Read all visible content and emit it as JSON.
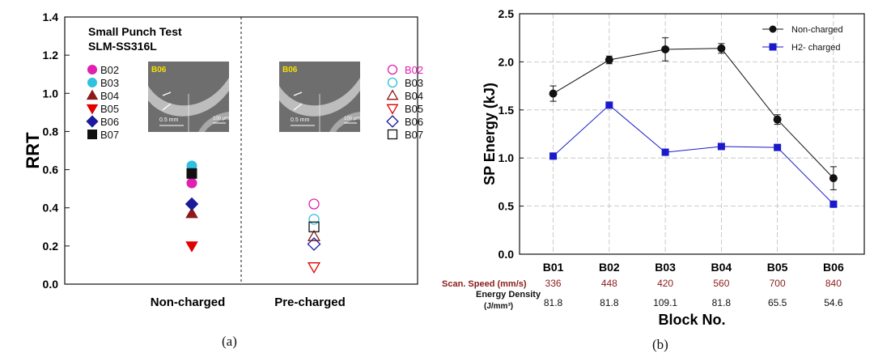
{
  "chart_data": [
    {
      "type": "scatter",
      "panel_label": "(a)",
      "title": "Small Punch Test",
      "subtitle": "SLM-SS316L",
      "ylabel": "RRT",
      "ylim": [
        0.0,
        1.4
      ],
      "yticks": [
        "0.0",
        "0.2",
        "0.4",
        "0.6",
        "0.8",
        "1.0",
        "1.2",
        "1.4"
      ],
      "categories": [
        "Non-charged",
        "Pre-charged"
      ],
      "grid": false,
      "legend_placement": "in each panel, left of the inset",
      "inset_label": "B06",
      "inset_scale_text": "0.5 mm",
      "inset_bar_text": "100 μm",
      "series": [
        {
          "name": "B02",
          "marker": "circle",
          "color": "#e020b0",
          "values": [
            0.53,
            0.42
          ]
        },
        {
          "name": "B03",
          "marker": "circle",
          "color": "#30c0e0",
          "values": [
            0.62,
            0.34
          ]
        },
        {
          "name": "B04",
          "marker": "triangle-up",
          "color": "#8b1a1a",
          "values": [
            0.37,
            0.25
          ]
        },
        {
          "name": "B05",
          "marker": "triangle-down",
          "color": "#e00000",
          "values": [
            0.2,
            0.09
          ]
        },
        {
          "name": "B06",
          "marker": "diamond",
          "color": "#1a1a9a",
          "values": [
            0.42,
            0.21
          ]
        },
        {
          "name": "B07",
          "marker": "square",
          "color": "#111111",
          "values": [
            0.58,
            0.3
          ]
        }
      ]
    },
    {
      "type": "line",
      "panel_label": "(b)",
      "xlabel": "Block No.",
      "ylabel": "SP Energy (kJ)",
      "ylim": [
        0.0,
        2.5
      ],
      "yticks": [
        "0.0",
        "0.5",
        "1.0",
        "1.5",
        "2.0",
        "2.5"
      ],
      "categories": [
        "B01",
        "B02",
        "B03",
        "B04",
        "B05",
        "B06"
      ],
      "grid": true,
      "legend_placement": "top-right",
      "series": [
        {
          "name": "Non-charged",
          "marker": "circle",
          "color": "#111111",
          "values": [
            1.67,
            2.02,
            2.13,
            2.14,
            1.4,
            0.79
          ],
          "errors": [
            0.08,
            0.04,
            0.12,
            0.05,
            0.05,
            0.12
          ]
        },
        {
          "name": "H2- charged",
          "marker": "square",
          "color": "#1a1acc",
          "values": [
            1.02,
            1.55,
            1.06,
            1.12,
            1.11,
            0.52
          ]
        }
      ],
      "extra_rows": [
        {
          "label": "Scan. Speed (mm/s)",
          "color": "#8b1a1a",
          "values": [
            "336",
            "448",
            "420",
            "560",
            "700",
            "840"
          ]
        },
        {
          "label": "Energy Density",
          "label2": "(J/mm³)",
          "color": "#111111",
          "values": [
            "81.8",
            "81.8",
            "109.1",
            "81.8",
            "65.5",
            "54.6"
          ]
        }
      ]
    }
  ]
}
